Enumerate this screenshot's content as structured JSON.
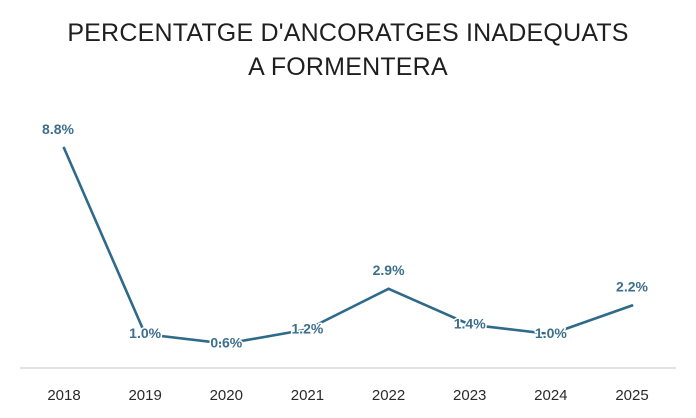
{
  "chart_data": {
    "type": "line",
    "title_lines": [
      "PERCENTATGE D'ANCORATGES INADEQUATS",
      "A FORMENTERA"
    ],
    "xlabel": "",
    "ylabel": "",
    "categories": [
      "2018",
      "2019",
      "2020",
      "2021",
      "2022",
      "2023",
      "2024",
      "2025"
    ],
    "series": [
      {
        "values": [
          8.8,
          1.0,
          0.6,
          1.2,
          2.9,
          1.4,
          1.0,
          2.2
        ],
        "labels": [
          "8.8%",
          "1.0%",
          "0.6%",
          "1.2%",
          "2.9%",
          "1.4%",
          "1.0%",
          "2.2%"
        ]
      }
    ],
    "ylim": [
      0,
      9.5
    ],
    "grid": false,
    "legend": "none",
    "colors": {
      "line": "#2e6a89",
      "label": "#3d6f8c",
      "axis": "#d9d9d9",
      "title": "#1f1f1f"
    }
  }
}
